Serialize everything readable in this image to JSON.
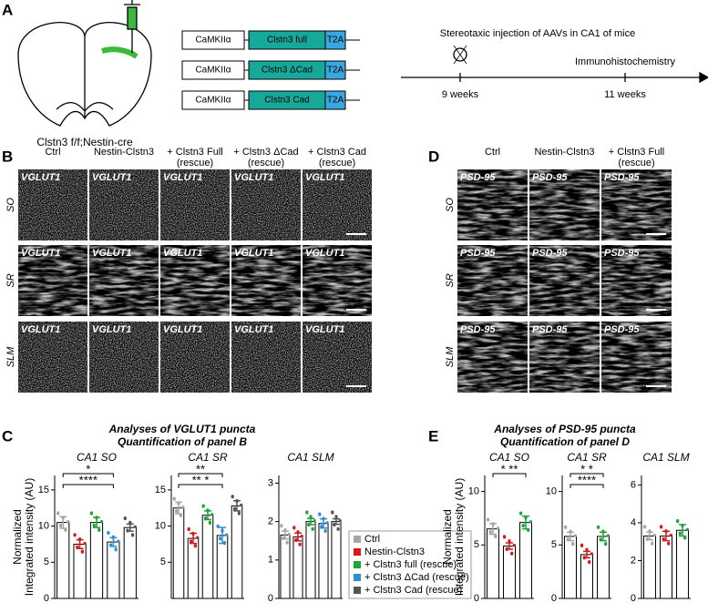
{
  "panel_labels": [
    "A",
    "B",
    "C",
    "D",
    "E"
  ],
  "panel_a": {
    "mouse": "Clstn3 f/f;Nestin-cre",
    "constructs": [
      {
        "promoter": "CaMKIIα",
        "gene": "Clstn3 full",
        "tag": "T2A"
      },
      {
        "promoter": "CaMKIIα",
        "gene": "Clstn3 ΔCad",
        "tag": "T2A"
      },
      {
        "promoter": "CaMKIIα",
        "gene": "Clstn3 Cad",
        "tag": "T2A"
      }
    ],
    "timeline_title": "Stereotaxic injection of AAVs in CA1 of mice",
    "events": [
      "9 weeks",
      "11 weeks"
    ],
    "event_note": "Immunohistochemistry"
  },
  "panel_b": {
    "columns": [
      [
        "Ctrl"
      ],
      [
        "Nestin-Clstn3"
      ],
      [
        "+ Clstn3 Full",
        "(rescue)"
      ],
      [
        "+ Clstn3 ΔCad",
        "(rescue)"
      ],
      [
        "+ Clstn3 Cad",
        "(rescue)"
      ]
    ],
    "rows": [
      "SO",
      "SR",
      "SLM"
    ],
    "marker": "VGLUT1"
  },
  "panel_d": {
    "columns": [
      [
        "Ctrl"
      ],
      [
        "Nestin-Clstn3"
      ],
      [
        "+ Clstn3 Full",
        "(rescue)"
      ]
    ],
    "rows": [
      "SO",
      "SR",
      "SLM"
    ],
    "marker": "PSD-95"
  },
  "panel_c": {
    "title": [
      "Analyses of VGLUT1 puncta",
      "Quantification of panel B"
    ],
    "legend": [
      {
        "name": "Ctrl",
        "color": "#a6a6a6"
      },
      {
        "name": "Nestin-Clstn3",
        "color": "#d7191c"
      },
      {
        "name": "+ Clstn3 full (rescue)",
        "color": "#1fa33a"
      },
      {
        "name": "+ Clstn3 ΔCad (rescue)",
        "color": "#2b8fd0"
      },
      {
        "name": "+ Clstn3 Cad (rescue)",
        "color": "#555555"
      }
    ]
  },
  "panel_e": {
    "title": [
      "Analyses of PSD-95 puncta",
      "Quantification of panel D"
    ]
  },
  "chart_data": [
    {
      "type": "bar",
      "title": "CA1 SO",
      "y_label": [
        "Normalized",
        "Integrated intensity (AU)"
      ],
      "categories": [
        null,
        null,
        null,
        null,
        null
      ],
      "values": [
        10.5,
        7.5,
        10.5,
        7.8,
        9.8
      ],
      "errors": [
        0.8,
        0.6,
        0.7,
        0.6,
        0.5
      ],
      "colors": [
        "#a6a6a6",
        "#d7191c",
        "#1fa33a",
        "#2b8fd0",
        "#555555"
      ],
      "ylim": [
        0,
        17
      ],
      "yticks": [
        0,
        5,
        10,
        15
      ],
      "significance": [
        "*",
        "****"
      ]
    },
    {
      "type": "bar",
      "title": "CA1 SR",
      "categories": [
        null,
        null,
        null,
        null,
        null
      ],
      "values": [
        12.5,
        8.3,
        11.5,
        8.7,
        12.8
      ],
      "errors": [
        0.8,
        0.7,
        0.6,
        1.1,
        0.7
      ],
      "colors": [
        "#a6a6a6",
        "#d7191c",
        "#1fa33a",
        "#2b8fd0",
        "#555555"
      ],
      "ylim": [
        0,
        17
      ],
      "yticks": [
        5,
        10,
        15
      ],
      "significance": [
        "**",
        "** *"
      ]
    },
    {
      "type": "bar",
      "title": "CA1 SLM",
      "categories": [
        null,
        null,
        null,
        null,
        null
      ],
      "values": [
        1.65,
        1.6,
        2.0,
        1.95,
        2.0
      ],
      "errors": [
        0.1,
        0.1,
        0.08,
        0.12,
        0.07
      ],
      "colors": [
        "#a6a6a6",
        "#d7191c",
        "#1fa33a",
        "#2b8fd0",
        "#555555"
      ],
      "ylim": [
        0,
        3.2
      ],
      "yticks": [
        0,
        1,
        2,
        3
      ],
      "significance": []
    },
    {
      "type": "bar",
      "title": "CA1 SO",
      "y_label": [
        "Normalized",
        "Integrated intensity (AU)"
      ],
      "categories": [
        null,
        null,
        null
      ],
      "values": [
        6.5,
        4.9,
        7.1
      ],
      "errors": [
        0.5,
        0.3,
        0.6
      ],
      "colors": [
        "#a6a6a6",
        "#d7191c",
        "#1fa33a"
      ],
      "ylim": [
        0,
        11.5
      ],
      "yticks": [
        0,
        5,
        10
      ],
      "significance": [
        "* **"
      ]
    },
    {
      "type": "bar",
      "title": "CA1 SR",
      "categories": [
        null,
        null,
        null
      ],
      "values": [
        5.8,
        4.1,
        5.8
      ],
      "errors": [
        0.4,
        0.3,
        0.4
      ],
      "colors": [
        "#a6a6a6",
        "#d7191c",
        "#1fa33a"
      ],
      "ylim": [
        0,
        11.5
      ],
      "yticks": [
        0,
        5,
        10
      ],
      "significance": [
        "* *",
        "****"
      ]
    },
    {
      "type": "bar",
      "title": "CA1 SLM",
      "categories": [
        null,
        null,
        null
      ],
      "values": [
        3.3,
        3.3,
        3.6
      ],
      "errors": [
        0.2,
        0.25,
        0.3
      ],
      "colors": [
        "#a6a6a6",
        "#d7191c",
        "#1fa33a"
      ],
      "ylim": [
        0,
        6.5
      ],
      "yticks": [
        0,
        2,
        4,
        6
      ],
      "significance": []
    }
  ]
}
